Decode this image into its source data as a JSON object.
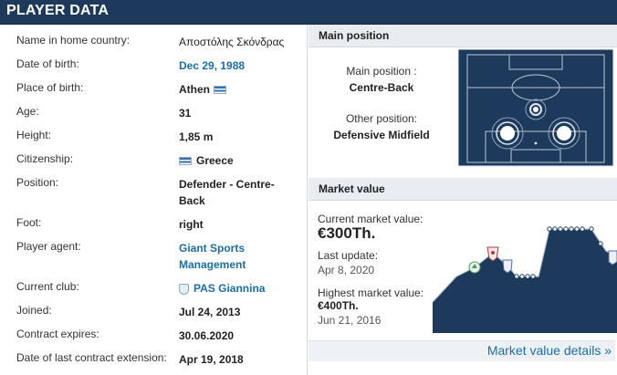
{
  "header": {
    "title": "PLAYER DATA"
  },
  "player": {
    "rows": [
      {
        "label": "Name in home country:",
        "value": "Αποστόλης Σκόνδρας"
      },
      {
        "label": "Date of birth:",
        "value": "Dec 29, 1988"
      },
      {
        "label": "Place of birth:",
        "value": "Athen"
      },
      {
        "label": "Age:",
        "value": "31"
      },
      {
        "label": "Height:",
        "value": "1,85 m"
      },
      {
        "label": "Citizenship:",
        "value": "Greece"
      },
      {
        "label": "Position:",
        "value": "Defender - Centre-Back"
      },
      {
        "label": "Foot:",
        "value": "right"
      },
      {
        "label": "Player agent:",
        "value": "Giant Sports Management"
      },
      {
        "label": "Current club:",
        "value": "PAS Giannina"
      },
      {
        "label": "Joined:",
        "value": "Jul 24, 2013"
      },
      {
        "label": "Contract expires:",
        "value": "30.06.2020"
      },
      {
        "label": "Date of last contract extension:",
        "value": "Apr 19, 2018"
      }
    ]
  },
  "main_position": {
    "section_title": "Main position",
    "main_label": "Main position :",
    "main_value": "Centre-Back",
    "other_label": "Other position:",
    "other_value": "Defensive Midfield"
  },
  "market_value": {
    "section_title": "Market value",
    "current_label": "Current market value:",
    "current_value": "€300Th.",
    "last_update_label": "Last update:",
    "last_update_value": "Apr 8, 2020",
    "highest_label": "Highest market value:",
    "highest_value": "€400Th.",
    "highest_date": "Jun 21, 2016",
    "details_link": "Market value details »"
  },
  "colors": {
    "header_bg": "#1d3a5c",
    "link": "#1a6ea8",
    "pitch": "#1d3a5c",
    "chart_area": "#1d3a5c"
  },
  "icons": [
    "greece-flag-icon",
    "club-crest-icon"
  ]
}
